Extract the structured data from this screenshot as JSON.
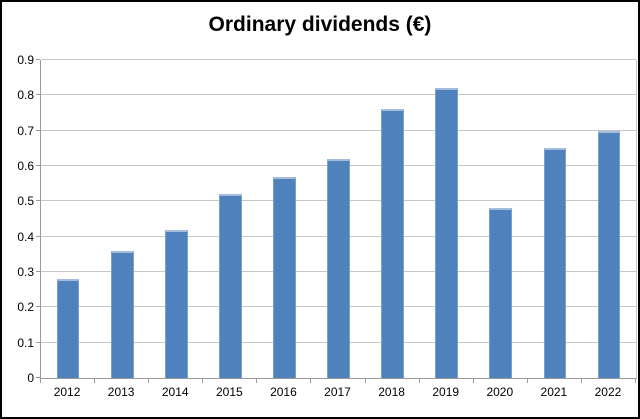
{
  "chart_data": {
    "type": "bar",
    "title": "Ordinary dividends (€)",
    "categories": [
      "2012",
      "2013",
      "2014",
      "2015",
      "2016",
      "2017",
      "2018",
      "2019",
      "2020",
      "2021",
      "2022"
    ],
    "values": [
      0.28,
      0.36,
      0.42,
      0.52,
      0.57,
      0.62,
      0.76,
      0.82,
      0.48,
      0.65,
      0.7
    ],
    "xlabel": "",
    "ylabel": "",
    "ylim": [
      0,
      0.9
    ],
    "ytick_step": 0.1,
    "ytick_labels": [
      "0",
      "0.1",
      "0.2",
      "0.3",
      "0.4",
      "0.5",
      "0.6",
      "0.7",
      "0.8",
      "0.9"
    ],
    "grid": true,
    "legend": "none",
    "bar_color": "#4f81bd",
    "gridline_color": "#c6c6c6",
    "axis_color": "#9a9a9a",
    "title_color": "#000000"
  }
}
